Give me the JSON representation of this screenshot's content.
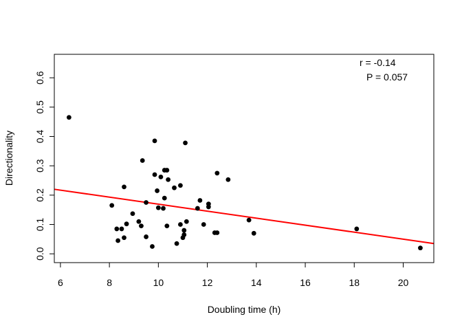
{
  "chart_data": {
    "type": "scatter",
    "xlabel": "Doubling time (h)",
    "ylabel": "Directionality",
    "xlim": [
      5.75,
      21.25
    ],
    "ylim": [
      -0.03,
      0.68
    ],
    "xticks": [
      "6",
      "8",
      "10",
      "12",
      "14",
      "16",
      "18",
      "20"
    ],
    "yticks": [
      "0.0",
      "0.1",
      "0.2",
      "0.3",
      "0.4",
      "0.5",
      "0.6"
    ],
    "annotation_r": "r = -0.14",
    "annotation_p": "P = 0.057",
    "point_color": "#000000",
    "fit_color": "#ff0000",
    "fit_line": {
      "x": [
        5.75,
        21.25
      ],
      "y": [
        0.22,
        0.035
      ]
    },
    "points": [
      [
        6.35,
        0.465
      ],
      [
        8.1,
        0.165
      ],
      [
        8.3,
        0.085
      ],
      [
        8.35,
        0.045
      ],
      [
        8.5,
        0.085
      ],
      [
        8.6,
        0.055
      ],
      [
        8.6,
        0.228
      ],
      [
        8.7,
        0.102
      ],
      [
        8.95,
        0.137
      ],
      [
        9.2,
        0.11
      ],
      [
        9.3,
        0.095
      ],
      [
        9.35,
        0.318
      ],
      [
        9.5,
        0.175
      ],
      [
        9.5,
        0.058
      ],
      [
        9.75,
        0.025
      ],
      [
        9.85,
        0.385
      ],
      [
        9.85,
        0.27
      ],
      [
        9.95,
        0.215
      ],
      [
        10.0,
        0.157
      ],
      [
        10.1,
        0.262
      ],
      [
        10.2,
        0.155
      ],
      [
        10.25,
        0.19
      ],
      [
        10.25,
        0.285
      ],
      [
        10.35,
        0.285
      ],
      [
        10.35,
        0.095
      ],
      [
        10.4,
        0.253
      ],
      [
        10.65,
        0.225
      ],
      [
        10.75,
        0.035
      ],
      [
        10.9,
        0.1
      ],
      [
        10.9,
        0.233
      ],
      [
        11.0,
        0.055
      ],
      [
        11.05,
        0.065
      ],
      [
        11.05,
        0.08
      ],
      [
        11.1,
        0.378
      ],
      [
        11.15,
        0.11
      ],
      [
        11.6,
        0.155
      ],
      [
        11.7,
        0.182
      ],
      [
        11.85,
        0.1
      ],
      [
        12.05,
        0.16
      ],
      [
        12.05,
        0.17
      ],
      [
        12.3,
        0.072
      ],
      [
        12.4,
        0.072
      ],
      [
        12.4,
        0.275
      ],
      [
        12.85,
        0.253
      ],
      [
        13.7,
        0.115
      ],
      [
        13.9,
        0.07
      ],
      [
        18.1,
        0.085
      ],
      [
        20.7,
        0.02
      ]
    ]
  }
}
